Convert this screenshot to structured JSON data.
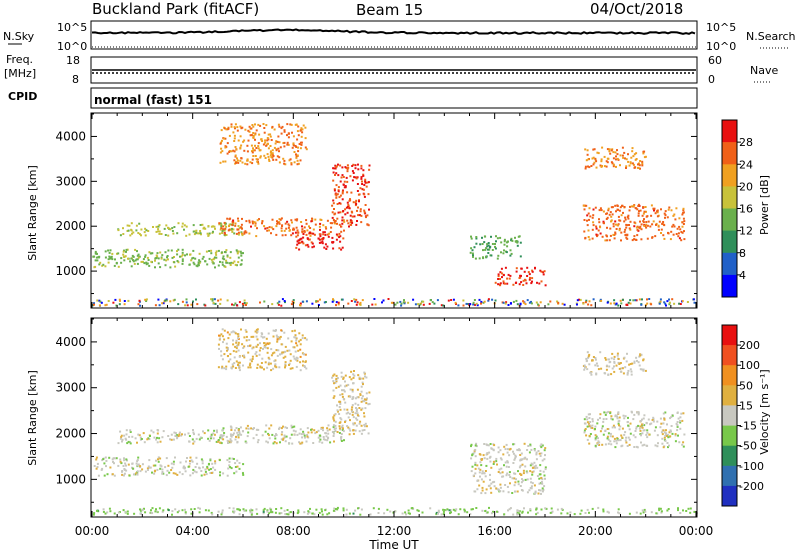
{
  "header": {
    "station": "Buckland Park (fitACF)",
    "beam": "Beam 15",
    "date": "04/Oct/2018"
  },
  "strip_nsky": {
    "left_label": "N.Sky",
    "right_label": "N.Search",
    "left_ticks": [
      "10^5",
      "10^0"
    ],
    "right_ticks": [
      "10^5",
      "10^0"
    ]
  },
  "strip_freq": {
    "left_label_1": "Freq.",
    "left_label_2": "[MHz]",
    "right_label": "Nave",
    "left_ticks": [
      "18",
      "8"
    ],
    "right_ticks": [
      "60",
      "0"
    ]
  },
  "strip_cpid": {
    "left_label": "CPID",
    "text": "normal (fast) 151"
  },
  "axes": {
    "ylabel": "Slant Range [km]",
    "xlabel": "Time UT",
    "xticks": [
      "00:00",
      "04:00",
      "08:00",
      "12:00",
      "16:00",
      "20:00",
      "00:00"
    ],
    "yticks": [
      "1000",
      "2000",
      "3000",
      "4000"
    ]
  },
  "colorbars": {
    "power": {
      "label": "Power [dB]",
      "ticks": [
        "4",
        "8",
        "12",
        "16",
        "20",
        "24",
        "28"
      ],
      "colors": [
        "#0000ff",
        "#2060c8",
        "#2f8f5a",
        "#6ab04c",
        "#c8c23a",
        "#f0a020",
        "#f06018",
        "#e81010"
      ]
    },
    "velocity": {
      "label": "Velocity [m s⁻¹]",
      "ticks": [
        "200",
        "100",
        "50",
        "15",
        "-15",
        "-50",
        "-100",
        "-200"
      ],
      "colors": [
        "#2030c0",
        "#3070b0",
        "#2f8f5a",
        "#78c84a",
        "#c8c8c0",
        "#e0b040",
        "#f09020",
        "#f05020",
        "#e81010"
      ]
    }
  },
  "chart_data": [
    {
      "type": "heatmap",
      "title": "Power",
      "xlabel": "Time UT",
      "ylabel": "Slant Range [km]",
      "xlim": [
        0,
        24
      ],
      "ylim": [
        200,
        4500
      ],
      "colorbar_label": "Power [dB]",
      "colorbar_range": [
        0,
        30
      ],
      "features": [
        {
          "t": [
            0.0,
            24.0
          ],
          "r": [
            250,
            400
          ],
          "value": "mixed"
        },
        {
          "t": [
            0.0,
            3.0
          ],
          "r": [
            1250,
            1350
          ],
          "value": 14
        },
        {
          "t": [
            0.0,
            6.0
          ],
          "r": [
            1100,
            1500
          ],
          "value": 14
        },
        {
          "t": [
            1.0,
            6.0
          ],
          "r": [
            1800,
            2100
          ],
          "value": 16
        },
        {
          "t": [
            5.0,
            10.0
          ],
          "r": [
            1800,
            2200
          ],
          "value": 24
        },
        {
          "t": [
            8.0,
            10.0
          ],
          "r": [
            1500,
            1900
          ],
          "value": 28
        },
        {
          "t": [
            9.5,
            11.0
          ],
          "r": [
            2000,
            3400
          ],
          "value": 26
        },
        {
          "t": [
            5.0,
            8.5
          ],
          "r": [
            3400,
            4300
          ],
          "value": 22
        },
        {
          "t": [
            15.0,
            17.0
          ],
          "r": [
            1300,
            1800
          ],
          "value": 12
        },
        {
          "t": [
            16.0,
            18.0
          ],
          "r": [
            700,
            1100
          ],
          "value": 26
        },
        {
          "t": [
            19.5,
            23.5
          ],
          "r": [
            1700,
            2500
          ],
          "value": 24
        },
        {
          "t": [
            19.5,
            22.0
          ],
          "r": [
            3300,
            3800
          ],
          "value": 22
        }
      ]
    },
    {
      "type": "heatmap",
      "title": "Velocity",
      "xlabel": "Time UT",
      "ylabel": "Slant Range [km]",
      "xlim": [
        0,
        24
      ],
      "ylim": [
        200,
        4500
      ],
      "colorbar_label": "Velocity [m s⁻¹]",
      "colorbar_range": [
        -250,
        250
      ],
      "features": [
        {
          "t": [
            0.0,
            24.0
          ],
          "r": [
            250,
            400
          ],
          "value": 40
        },
        {
          "t": [
            0.0,
            6.0
          ],
          "r": [
            1100,
            1500
          ],
          "value": 0
        },
        {
          "t": [
            1.0,
            6.0
          ],
          "r": [
            1800,
            2100
          ],
          "value": 0
        },
        {
          "t": [
            5.0,
            10.0
          ],
          "r": [
            1800,
            2200
          ],
          "value": 0
        },
        {
          "t": [
            9.5,
            11.0
          ],
          "r": [
            2000,
            3400
          ],
          "value": -30
        },
        {
          "t": [
            5.0,
            8.5
          ],
          "r": [
            3400,
            4300
          ],
          "value": -40
        },
        {
          "t": [
            15.0,
            18.0
          ],
          "r": [
            700,
            1800
          ],
          "value": 0
        },
        {
          "t": [
            19.5,
            23.5
          ],
          "r": [
            1700,
            2500
          ],
          "value": 0
        },
        {
          "t": [
            19.5,
            22.0
          ],
          "r": [
            3300,
            3800
          ],
          "value": -20
        }
      ]
    }
  ]
}
